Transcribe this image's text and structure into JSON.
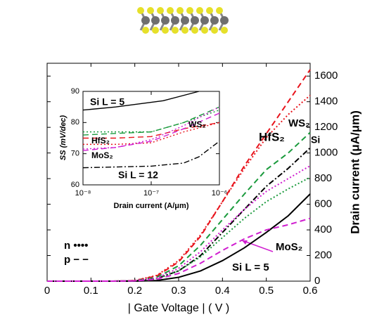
{
  "chart_data": [
    {
      "type": "line",
      "xlabel": "| Gate Voltage | ( V )",
      "ylabel": "Drain current (μA/μm)",
      "x": [
        0,
        0.05,
        0.1,
        0.15,
        0.2,
        0.25,
        0.3,
        0.35,
        0.4,
        0.45,
        0.5,
        0.55,
        0.6
      ],
      "xlim": [
        0,
        0.6
      ],
      "xticks": [
        0,
        0.1,
        0.2,
        0.3,
        0.4,
        0.5,
        0.6
      ],
      "ylim": [
        0,
        1700
      ],
      "yticks": [
        0,
        200,
        400,
        600,
        800,
        1000,
        1200,
        1400,
        1600
      ],
      "series": [
        {
          "color": "#000000",
          "style": "solid",
          "values": [
            0,
            0,
            0,
            0,
            0,
            5,
            30,
            80,
            160,
            260,
            380,
            510,
            680
          ]
        },
        {
          "color": "#000000",
          "style": "dashdot",
          "values": [
            0,
            0,
            0,
            0,
            2,
            20,
            80,
            200,
            380,
            560,
            740,
            880,
            1040
          ]
        },
        {
          "color": "#e8141c",
          "style": "dashed",
          "values": [
            0,
            0,
            0,
            0,
            5,
            40,
            150,
            350,
            620,
            900,
            1150,
            1400,
            1650
          ]
        },
        {
          "color": "#e8141c",
          "style": "dotted",
          "values": [
            0,
            0,
            0,
            0,
            5,
            45,
            160,
            360,
            620,
            880,
            1120,
            1300,
            1450
          ]
        },
        {
          "color": "#1a9a3c",
          "style": "dashed",
          "values": [
            0,
            0,
            0,
            0,
            3,
            30,
            120,
            280,
            480,
            680,
            870,
            1000,
            1160
          ]
        },
        {
          "color": "#1a9a3c",
          "style": "dotted",
          "values": [
            0,
            0,
            0,
            0,
            2,
            20,
            80,
            190,
            340,
            490,
            620,
            720,
            810
          ]
        },
        {
          "color": "#d01fd0",
          "style": "dotted",
          "values": [
            0,
            0,
            0,
            0,
            3,
            25,
            100,
            230,
            400,
            560,
            700,
            800,
            900
          ]
        },
        {
          "color": "#d01fd0",
          "style": "dashed",
          "values": [
            0,
            0,
            0,
            0,
            2,
            15,
            60,
            140,
            240,
            330,
            400,
            440,
            490
          ]
        }
      ],
      "annotations": [
        {
          "text": "HfS₂",
          "color": "#e8141c"
        },
        {
          "text": "WS₂",
          "color": "#1a9a3c"
        },
        {
          "text": "Si",
          "color": "#000000"
        },
        {
          "text": "MoS₂",
          "color": "#d01fd0"
        },
        {
          "text": "Si L = 5",
          "color": "#000000"
        },
        {
          "text": "n ••••",
          "color": "#000000"
        },
        {
          "text": "p − −",
          "color": "#000000"
        }
      ]
    },
    {
      "type": "line",
      "xlabel": "Drain current (A/μm)",
      "ylabel": "SS (mV/dec)",
      "xscale": "log",
      "xlim": [
        1e-08,
        1e-06
      ],
      "xticks": [
        {
          "value": 1e-08,
          "label": "10⁻⁸"
        },
        {
          "value": 1e-07,
          "label": "10⁻⁷"
        },
        {
          "value": 1e-06,
          "label": "10⁻⁶"
        }
      ],
      "ylim": [
        60,
        90
      ],
      "yticks": [
        60,
        70,
        80,
        90
      ],
      "series": [
        {
          "color": "#000000",
          "style": "solid",
          "x": [
            1e-08,
            3e-08,
            1.5e-07,
            5e-07
          ],
          "values": [
            84,
            85,
            87,
            90
          ]
        },
        {
          "color": "#000000",
          "style": "dashdot",
          "x": [
            1e-08,
            1e-07,
            3e-07,
            5e-07,
            1e-06
          ],
          "values": [
            65.5,
            66,
            67,
            69,
            74
          ]
        },
        {
          "color": "#e8141c",
          "style": "dashed",
          "x": [
            1e-08,
            3e-08,
            1e-07,
            3e-07,
            1e-06
          ],
          "values": [
            75,
            75,
            75.5,
            78,
            80
          ]
        },
        {
          "color": "#e8141c",
          "style": "dotted",
          "x": [
            1e-08,
            3e-08,
            1e-07,
            3e-07,
            1e-06
          ],
          "values": [
            73,
            73,
            73.5,
            77,
            80
          ]
        },
        {
          "color": "#1a9a3c",
          "style": "dotted",
          "x": [
            1e-08,
            3e-08,
            1e-07,
            3e-07,
            1e-06
          ],
          "values": [
            77,
            77,
            77,
            80,
            84
          ]
        },
        {
          "color": "#1a9a3c",
          "style": "dashed",
          "x": [
            1e-08,
            3e-08,
            1e-07,
            3e-07,
            1e-06
          ],
          "values": [
            76,
            76.5,
            77,
            80,
            85
          ]
        },
        {
          "color": "#d01fd0",
          "style": "dashed",
          "x": [
            1e-08,
            3e-08,
            1e-07,
            3e-07,
            1e-06
          ],
          "values": [
            71,
            72,
            74,
            78,
            83
          ]
        },
        {
          "color": "#d01fd0",
          "style": "dotted",
          "x": [
            1e-08,
            3e-08,
            1e-07,
            3e-07,
            1e-06
          ],
          "values": [
            71.5,
            72,
            74.5,
            79,
            85
          ]
        }
      ],
      "annotations": [
        {
          "text": "Si L = 5",
          "color": "#000000"
        },
        {
          "text": "WS₂",
          "color": "#1a9a3c"
        },
        {
          "text": "HfS₂",
          "color": "#e8141c"
        },
        {
          "text": "MoS₂",
          "color": "#d01fd0"
        },
        {
          "text": "Si L = 12",
          "color": "#000000"
        }
      ]
    }
  ]
}
